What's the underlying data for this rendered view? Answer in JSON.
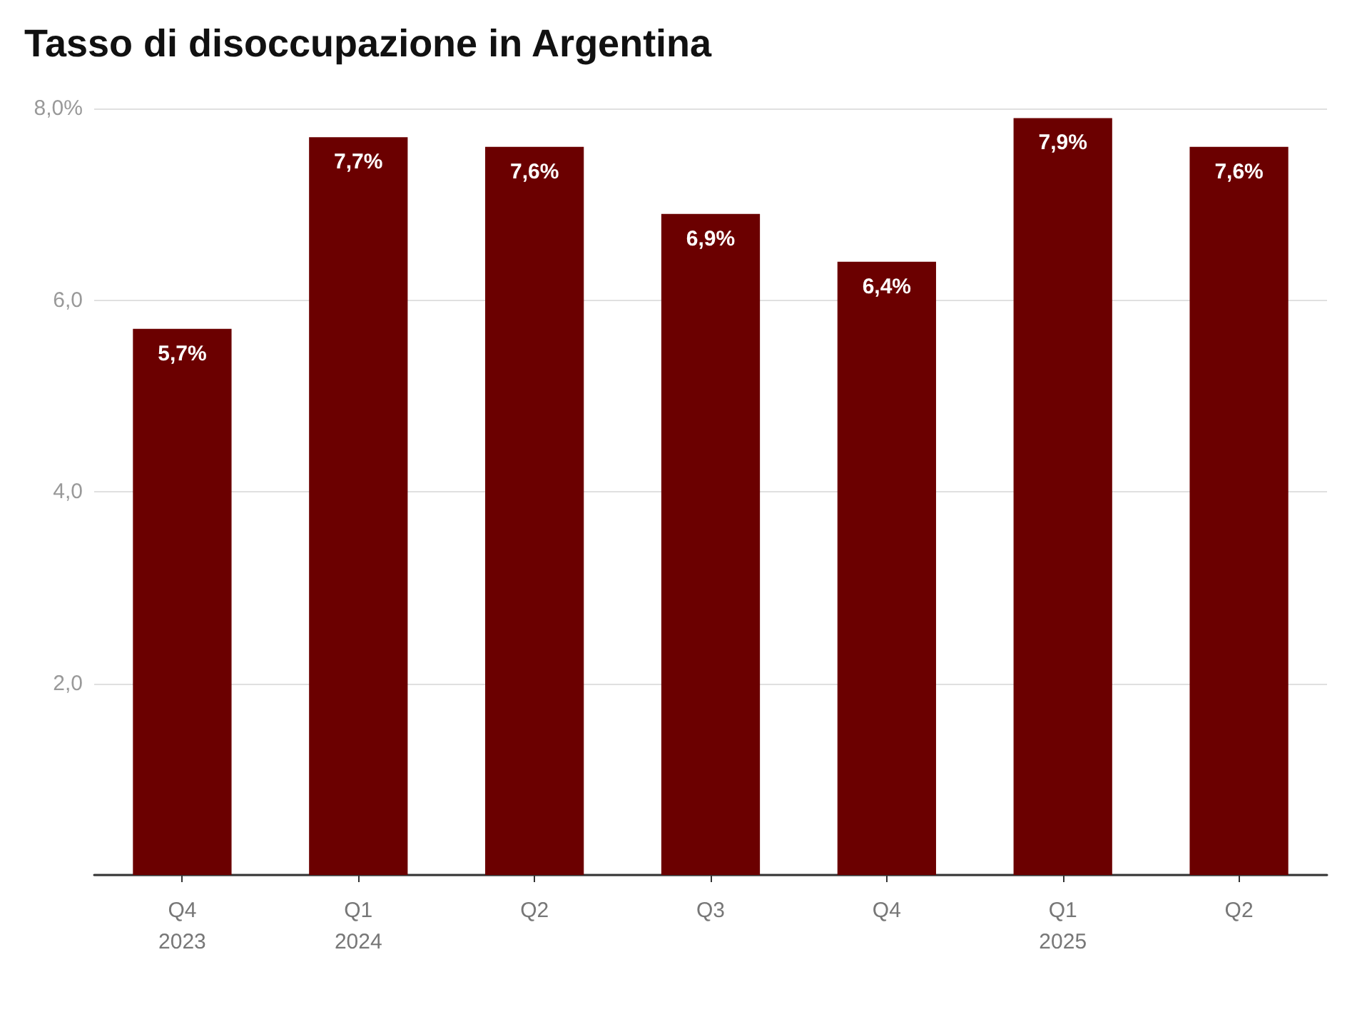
{
  "chart_data": {
    "type": "bar",
    "title": "Tasso di disoccupazione in Argentina",
    "categories": [
      "Q4\n2023",
      "Q1\n2024",
      "Q2",
      "Q3",
      "Q4",
      "Q1\n2025",
      "Q2"
    ],
    "values": [
      5.7,
      7.7,
      7.6,
      6.9,
      6.4,
      7.9,
      7.6
    ],
    "value_labels": [
      "5,7%",
      "7,7%",
      "7,6%",
      "6,9%",
      "6,4%",
      "7,9%",
      "7,6%"
    ],
    "color": "#6b0000",
    "ylim": [
      0,
      8
    ],
    "yticks": [
      {
        "value": 0,
        "label": null
      },
      {
        "value": 2,
        "label": "2,0"
      },
      {
        "value": 4,
        "label": "4,0"
      },
      {
        "value": 6,
        "label": "6,0"
      },
      {
        "value": 8,
        "label": "8,0%"
      }
    ],
    "grid": "y"
  }
}
